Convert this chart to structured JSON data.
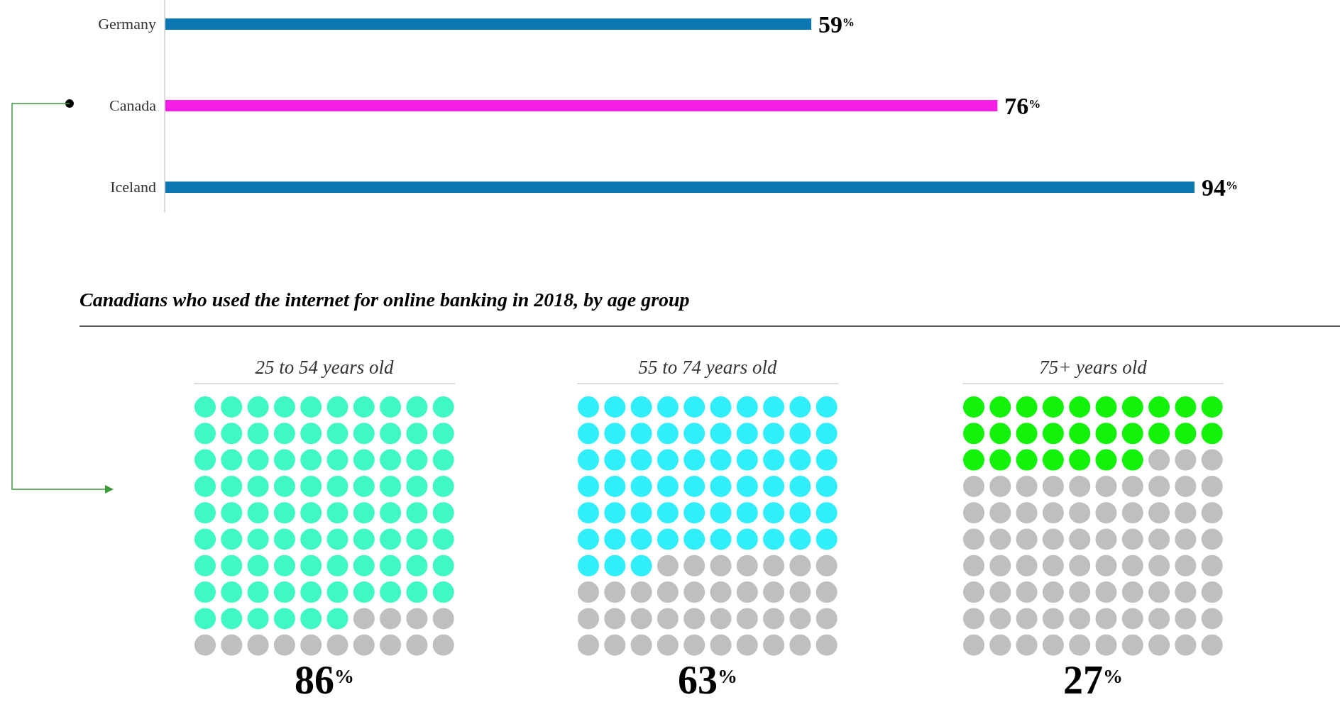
{
  "chart_data": [
    {
      "type": "bar",
      "orientation": "horizontal",
      "categories": [
        "Germany",
        "Canada",
        "Iceland"
      ],
      "values": [
        59,
        76,
        94
      ],
      "colors": [
        "#0b78b3",
        "#f81ee6",
        "#0b78b3"
      ],
      "value_labels": [
        "59$^{%}$",
        "76$^{%}$",
        "94$^{%}$"
      ]
    },
    {
      "type": "other",
      "title": "25 to 54 years old",
      "annotations": [
        "Canadians who used the internet for online banking in 2018, by age group"
      ],
      "values": [
        86
      ],
      "color": "#40f8c3",
      "value_labels": [
        "86$^{%}$"
      ]
    },
    {
      "type": "other",
      "title": "55 to 74 years old",
      "values": [
        63
      ],
      "color": "#30eefa",
      "value_labels": [
        "63$^{%}$"
      ]
    },
    {
      "type": "other",
      "title": "75+ years old",
      "values": [
        27
      ],
      "color": "#12f20a",
      "value_labels": [
        "27$^{%}$"
      ]
    }
  ]
}
